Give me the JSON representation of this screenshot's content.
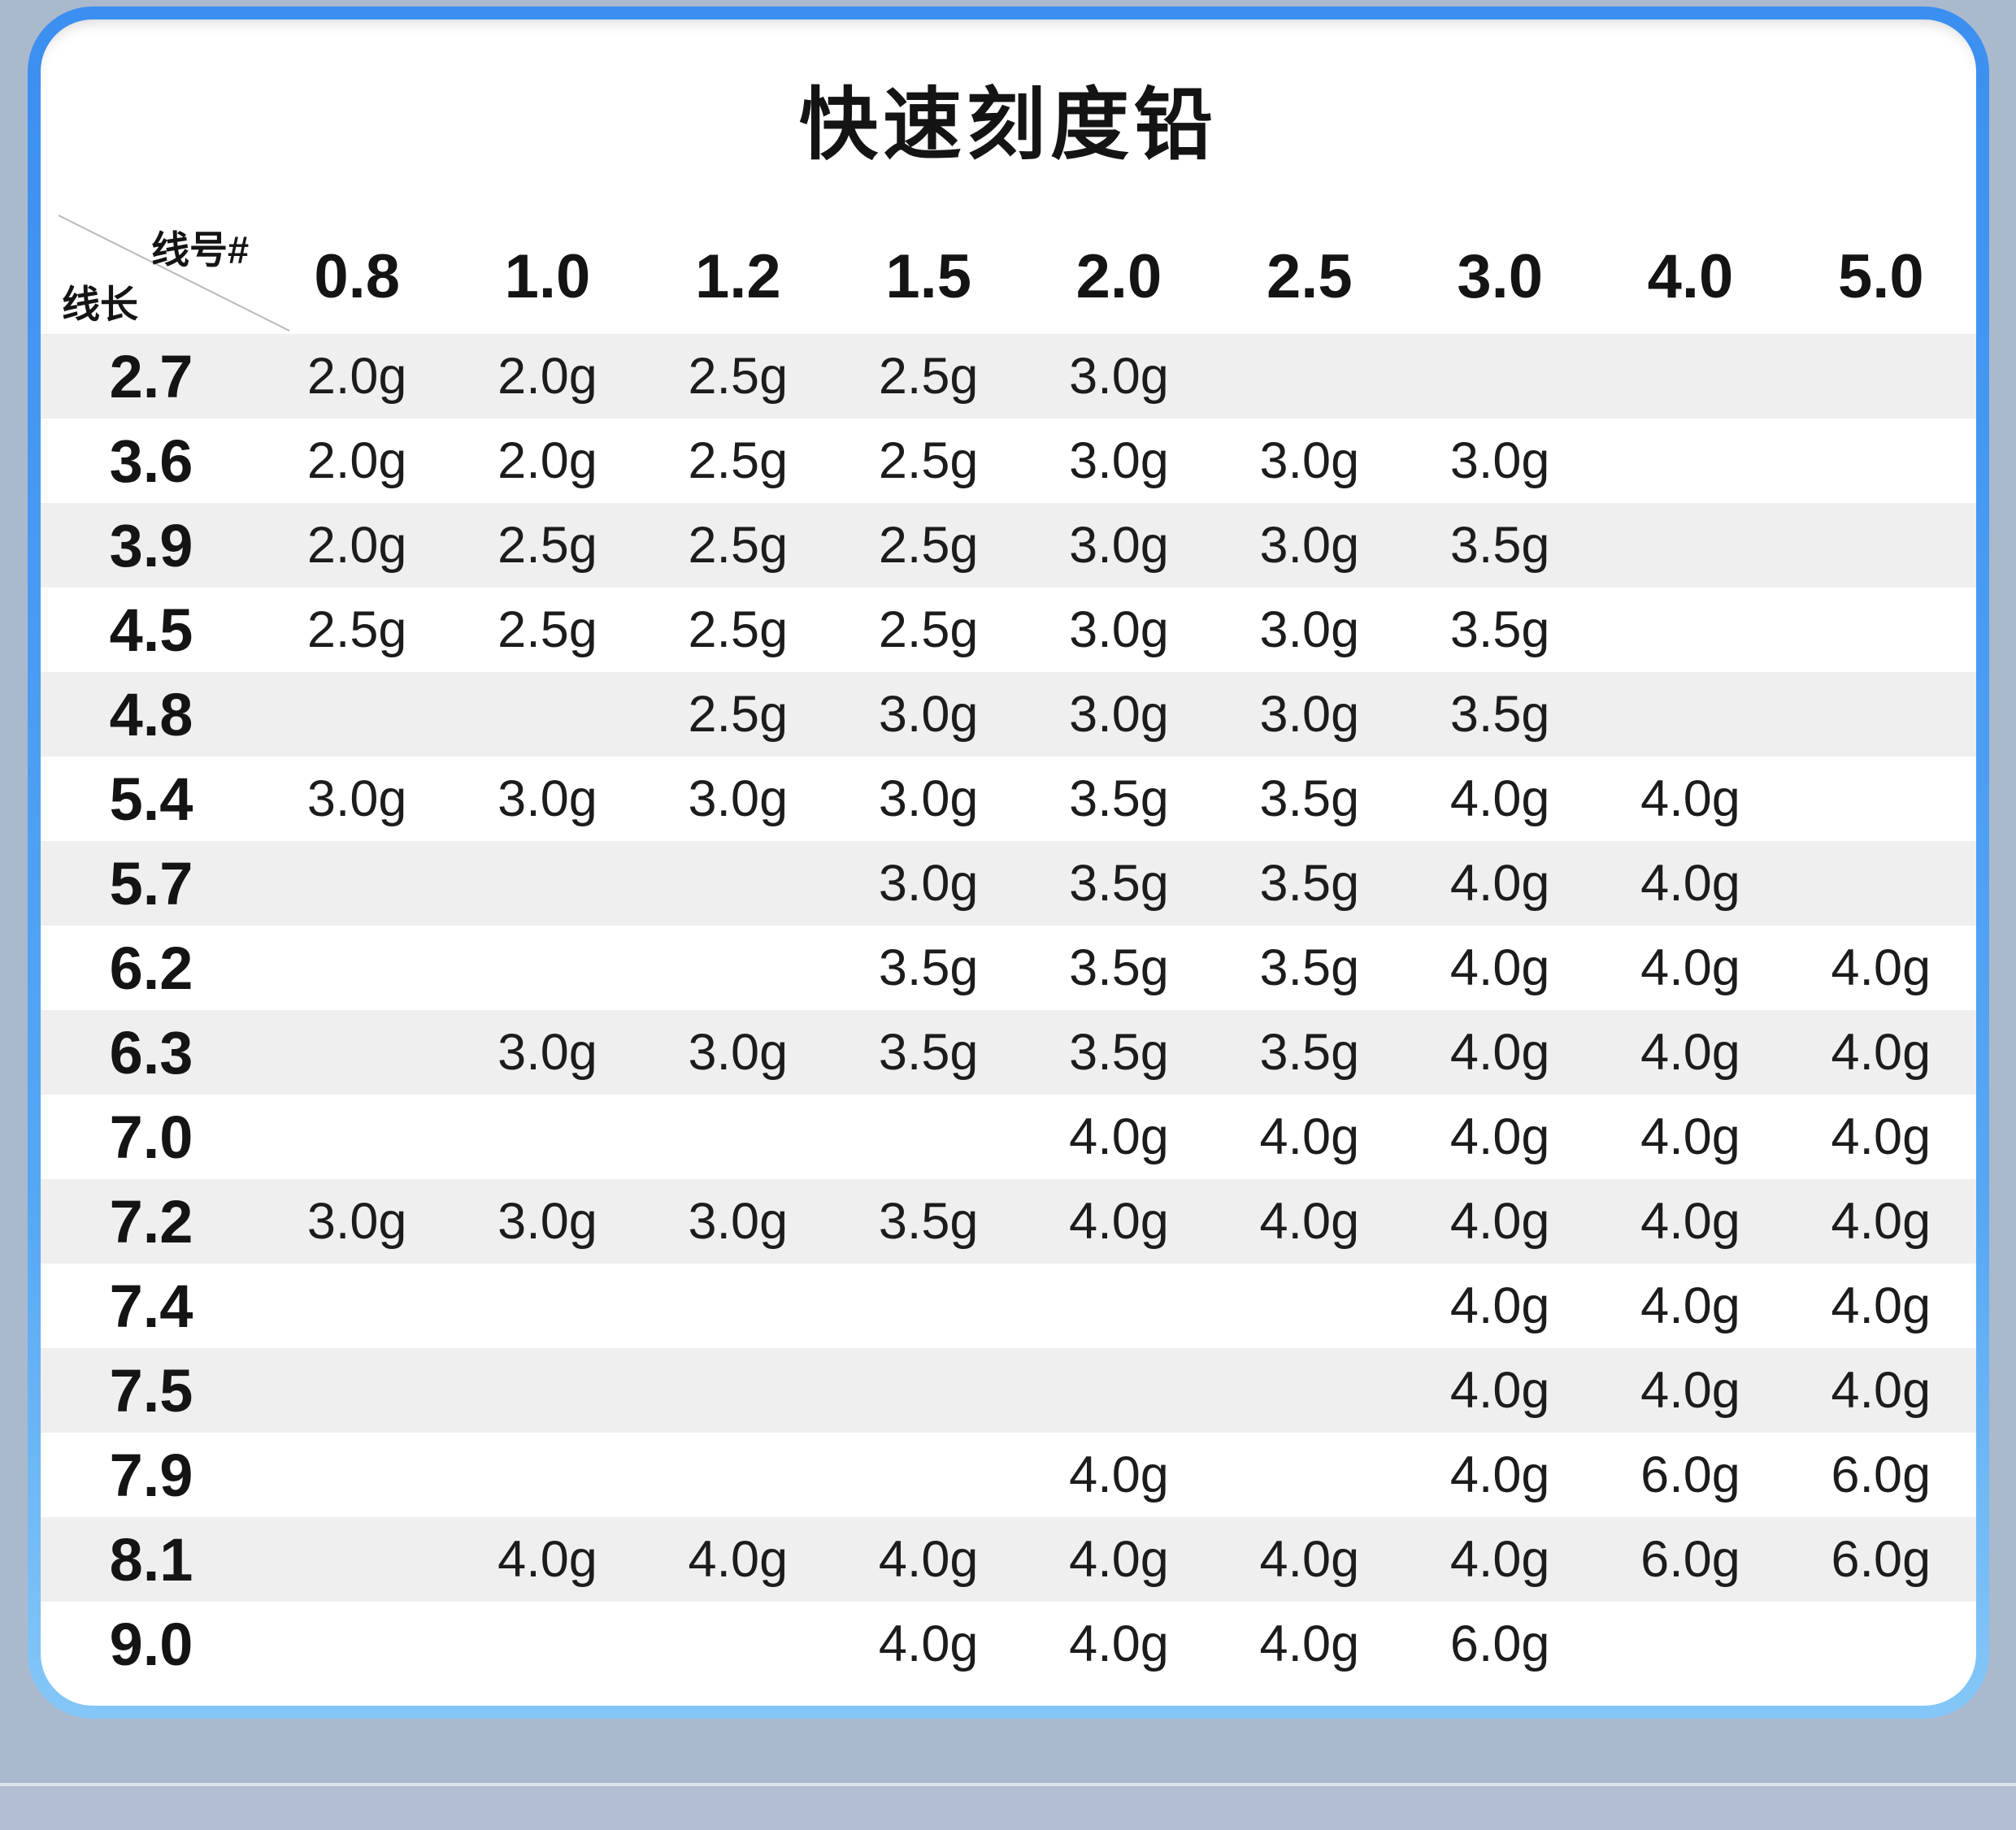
{
  "page": {
    "title": "快速刻度铅",
    "corner": {
      "top_right": "线号#",
      "bottom_left": "线长"
    }
  },
  "colors": {
    "accent_border_blue": "#3b8ff0",
    "accent_border_light_blue": "#84c7f7",
    "page_background": "#abb9ce",
    "footer_background": "#b2bfd2",
    "row_stripe": "#efefef",
    "text": "#141414"
  },
  "chart_data": {
    "type": "table",
    "title": "快速刻度铅",
    "corner_labels": {
      "column_axis": "线号#",
      "row_axis": "线长"
    },
    "column_axis_label": "线号#",
    "row_axis_label": "线长",
    "columns": [
      "0.8",
      "1.0",
      "1.2",
      "1.5",
      "2.0",
      "2.5",
      "3.0",
      "4.0",
      "5.0"
    ],
    "rows": [
      {
        "label": "2.7",
        "values": [
          "2.0g",
          "2.0g",
          "2.5g",
          "2.5g",
          "3.0g",
          "",
          "",
          "",
          ""
        ]
      },
      {
        "label": "3.6",
        "values": [
          "2.0g",
          "2.0g",
          "2.5g",
          "2.5g",
          "3.0g",
          "3.0g",
          "3.0g",
          "",
          ""
        ]
      },
      {
        "label": "3.9",
        "values": [
          "2.0g",
          "2.5g",
          "2.5g",
          "2.5g",
          "3.0g",
          "3.0g",
          "3.5g",
          "",
          ""
        ]
      },
      {
        "label": "4.5",
        "values": [
          "2.5g",
          "2.5g",
          "2.5g",
          "2.5g",
          "3.0g",
          "3.0g",
          "3.5g",
          "",
          ""
        ]
      },
      {
        "label": "4.8",
        "values": [
          "",
          "",
          "2.5g",
          "3.0g",
          "3.0g",
          "3.0g",
          "3.5g",
          "",
          ""
        ]
      },
      {
        "label": "5.4",
        "values": [
          "3.0g",
          "3.0g",
          "3.0g",
          "3.0g",
          "3.5g",
          "3.5g",
          "4.0g",
          "4.0g",
          ""
        ]
      },
      {
        "label": "5.7",
        "values": [
          "",
          "",
          "",
          "3.0g",
          "3.5g",
          "3.5g",
          "4.0g",
          "4.0g",
          ""
        ]
      },
      {
        "label": "6.2",
        "values": [
          "",
          "",
          "",
          "3.5g",
          "3.5g",
          "3.5g",
          "4.0g",
          "4.0g",
          "4.0g"
        ]
      },
      {
        "label": "6.3",
        "values": [
          "",
          "3.0g",
          "3.0g",
          "3.5g",
          "3.5g",
          "3.5g",
          "4.0g",
          "4.0g",
          "4.0g"
        ]
      },
      {
        "label": "7.0",
        "values": [
          "",
          "",
          "",
          "",
          "4.0g",
          "4.0g",
          "4.0g",
          "4.0g",
          "4.0g"
        ]
      },
      {
        "label": "7.2",
        "values": [
          "3.0g",
          "3.0g",
          "3.0g",
          "3.5g",
          "4.0g",
          "4.0g",
          "4.0g",
          "4.0g",
          "4.0g"
        ]
      },
      {
        "label": "7.4",
        "values": [
          "",
          "",
          "",
          "",
          "",
          "",
          "4.0g",
          "4.0g",
          "4.0g"
        ]
      },
      {
        "label": "7.5",
        "values": [
          "",
          "",
          "",
          "",
          "",
          "",
          "4.0g",
          "4.0g",
          "4.0g"
        ]
      },
      {
        "label": "7.9",
        "values": [
          "",
          "",
          "",
          "",
          "4.0g",
          "",
          "4.0g",
          "6.0g",
          "6.0g"
        ]
      },
      {
        "label": "8.1",
        "values": [
          "",
          "4.0g",
          "4.0g",
          "4.0g",
          "4.0g",
          "4.0g",
          "4.0g",
          "6.0g",
          "6.0g"
        ]
      },
      {
        "label": "9.0",
        "values": [
          "",
          "",
          "",
          "4.0g",
          "4.0g",
          "4.0g",
          "6.0g",
          "",
          ""
        ]
      }
    ]
  }
}
